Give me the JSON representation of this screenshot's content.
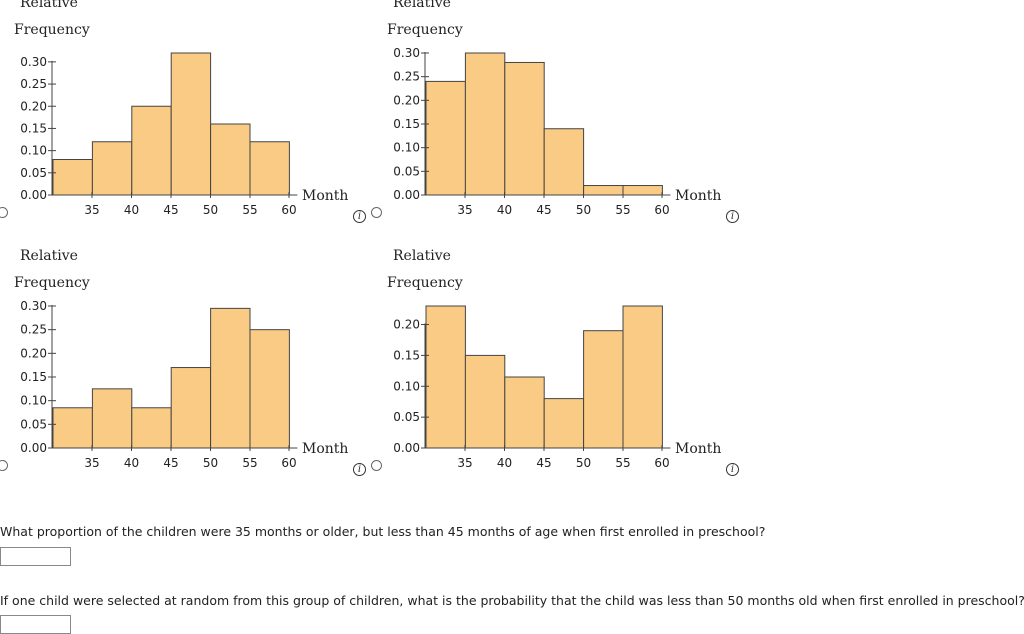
{
  "chart_data": [
    {
      "type": "bar",
      "title": "",
      "ylabel": [
        "Relative",
        "Frequency"
      ],
      "xlabel": "Month",
      "bin_edges": [
        30,
        35,
        40,
        45,
        50,
        55,
        60
      ],
      "x_tick_labels": [
        "35",
        "40",
        "45",
        "50",
        "55",
        "60"
      ],
      "values": [
        0.08,
        0.12,
        0.2,
        0.32,
        0.16,
        0.12
      ],
      "ylim": [
        0,
        0.32
      ],
      "y_ticks": [
        "0.00",
        "0.05",
        "0.10",
        "0.15",
        "0.20",
        "0.25",
        "0.30"
      ],
      "bar_color": "#f9cb84",
      "grid": false
    },
    {
      "type": "bar",
      "title": "",
      "ylabel": [
        "Relative",
        "Frequency"
      ],
      "xlabel": "Month",
      "bin_edges": [
        30,
        35,
        40,
        45,
        50,
        55,
        60
      ],
      "x_tick_labels": [
        "35",
        "40",
        "45",
        "50",
        "55",
        "60"
      ],
      "values": [
        0.24,
        0.3,
        0.28,
        0.14,
        0.02,
        0.02
      ],
      "ylim": [
        0,
        0.3
      ],
      "y_ticks": [
        "0.00",
        "0.05",
        "0.10",
        "0.15",
        "0.20",
        "0.25",
        "0.30"
      ],
      "bar_color": "#f9cb84",
      "grid": false
    },
    {
      "type": "bar",
      "title": "",
      "ylabel": [
        "Relative",
        "Frequency"
      ],
      "xlabel": "Month",
      "bin_edges": [
        30,
        35,
        40,
        45,
        50,
        55,
        60
      ],
      "x_tick_labels": [
        "35",
        "40",
        "45",
        "50",
        "55",
        "60"
      ],
      "values": [
        0.085,
        0.125,
        0.085,
        0.17,
        0.295,
        0.25
      ],
      "ylim": [
        0,
        0.3
      ],
      "y_ticks": [
        "0.00",
        "0.05",
        "0.10",
        "0.15",
        "0.20",
        "0.25",
        "0.30"
      ],
      "bar_color": "#f9cb84",
      "grid": false
    },
    {
      "type": "bar",
      "title": "",
      "ylabel": [
        "Relative",
        "Frequency"
      ],
      "xlabel": "Month",
      "bin_edges": [
        30,
        35,
        40,
        45,
        50,
        55,
        60
      ],
      "x_tick_labels": [
        "35",
        "40",
        "45",
        "50",
        "55",
        "60"
      ],
      "values": [
        0.23,
        0.15,
        0.115,
        0.08,
        0.19,
        0.23
      ],
      "ylim": [
        0,
        0.23
      ],
      "y_ticks": [
        "0.00",
        "0.05",
        "0.10",
        "0.15",
        "0.20"
      ],
      "bar_color": "#f9cb84",
      "grid": false
    }
  ],
  "options": [
    {
      "info_icon": "info-icon"
    },
    {
      "info_icon": "info-icon"
    },
    {
      "info_icon": "info-icon"
    },
    {
      "info_icon": "info-icon"
    }
  ],
  "questions": [
    {
      "text": "What proportion of the children were 35 months or older, but less than 45 months of age when first enrolled in preschool?",
      "value": "",
      "placeholder": ""
    },
    {
      "text": "If one child were selected at random from this group of children, what is the probability that the child was less than 50 months old when first enrolled in preschool?",
      "value": "",
      "placeholder": ""
    }
  ]
}
